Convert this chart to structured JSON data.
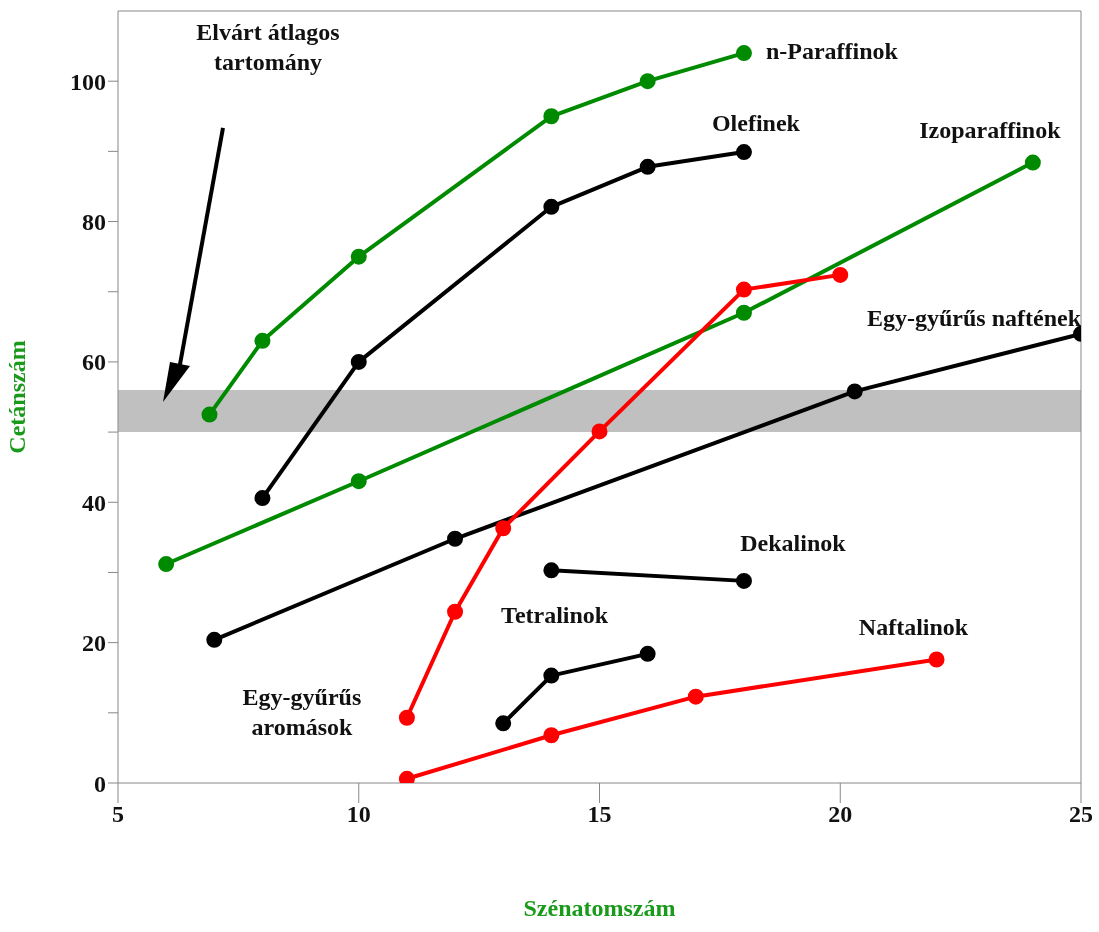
{
  "chart_data": {
    "type": "line",
    "xlabel": "Szénatomszám",
    "ylabel": "Cetánszám",
    "xlim": [
      5,
      25
    ],
    "xticks": [
      5,
      10,
      15,
      20,
      25
    ],
    "ylim": [
      0,
      110
    ],
    "yticks": [
      0,
      {
        "value": 10,
        "label": null
      },
      20,
      {
        "value": 30,
        "label": null
      },
      40,
      {
        "value": 50,
        "label": null
      },
      60,
      {
        "value": 70,
        "label": null
      },
      80,
      {
        "value": 90,
        "label": null
      },
      100
    ],
    "grid": false,
    "legend": false,
    "marker": "circle",
    "line_style": "solid",
    "bands": [
      {
        "axis": "y",
        "from": 50,
        "to": 56,
        "color": "#c0c0c0"
      }
    ],
    "annotations": [
      "Elvárt átlagos tartomány"
    ],
    "series": [
      {
        "name": "n-Paraffinok",
        "color": "#008a00",
        "x": [
          6.9,
          8,
          10,
          14,
          16,
          18
        ],
        "values": [
          52.5,
          63,
          75,
          95,
          100,
          104
        ]
      },
      {
        "name": "Olefinek",
        "color": "#000000",
        "x": [
          8,
          10,
          14,
          16,
          18
        ],
        "values": [
          40.6,
          60,
          82.1,
          87.8,
          89.9
        ]
      },
      {
        "name": "Izoparaffinok",
        "color": "#008a00",
        "x": [
          6,
          10,
          18,
          24
        ],
        "values": [
          31.2,
          43,
          67,
          88.4
        ]
      },
      {
        "name": "Egy-gyűrűs naftének",
        "color": "#000000",
        "x": [
          7,
          12,
          20.3,
          25
        ],
        "values": [
          20.4,
          34.8,
          55.8,
          64
        ]
      },
      {
        "name": "Egy-gyűrűs aromások",
        "color": "#ff0000",
        "x": [
          11,
          12,
          13,
          15,
          18,
          20
        ],
        "values": [
          9.3,
          24.4,
          36.3,
          50.1,
          70.3,
          72.4
        ]
      },
      {
        "name": "Dekalinok",
        "color": "#000000",
        "x": [
          14,
          18
        ],
        "values": [
          30.3,
          28.8
        ]
      },
      {
        "name": "Tetralinok",
        "color": "#000000",
        "x": [
          13,
          14,
          16
        ],
        "values": [
          8.5,
          15.3,
          18.4
        ]
      },
      {
        "name": "Naftalinok",
        "color": "#ff0000",
        "x": [
          11,
          14,
          17,
          22
        ],
        "values": [
          0.6,
          6.8,
          12.3,
          17.6
        ]
      }
    ]
  }
}
